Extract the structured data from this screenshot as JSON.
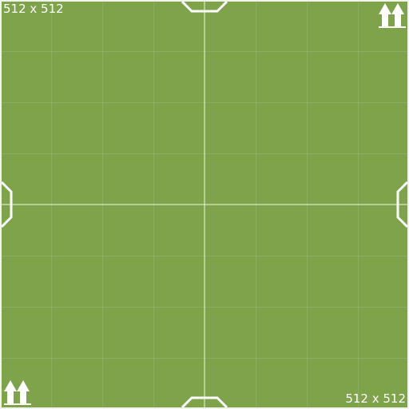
{
  "texture": {
    "size_label_top_left": "512 x 512",
    "size_label_bottom_right": "512 x 512",
    "background_color": "#7ea34b",
    "line_color": "#ffffff",
    "up_arrows_icon": "double-up-arrow-icon"
  }
}
